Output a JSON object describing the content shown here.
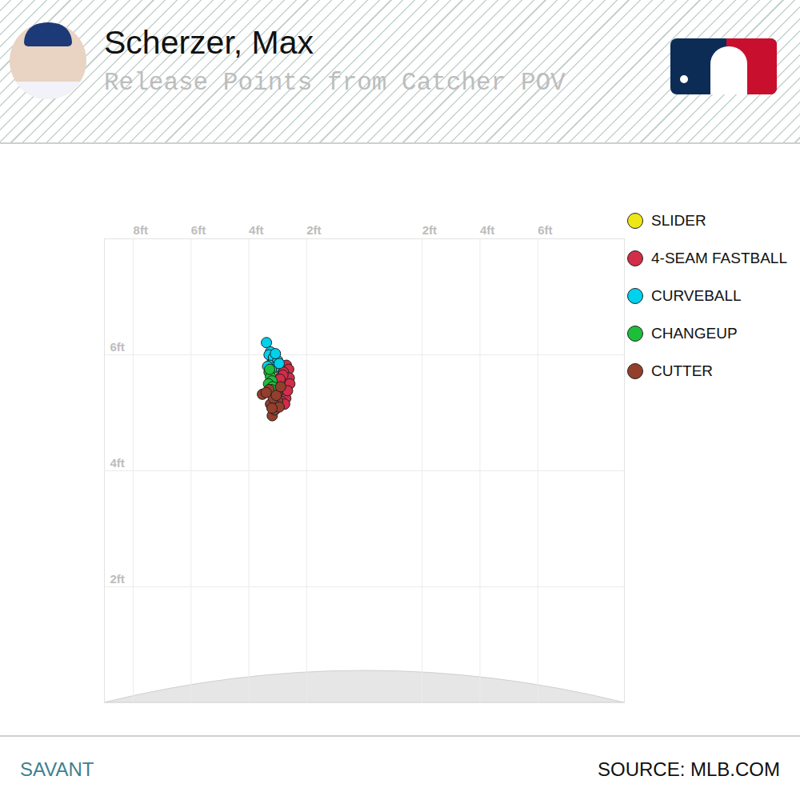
{
  "chart_data": {
    "type": "scatter",
    "title": "Scherzer, Max",
    "subtitle": "Release Points from Catcher POV",
    "footer_left": "SAVANT",
    "footer_right": "SOURCE: MLB.COM",
    "xlim": [
      -9,
      9
    ],
    "xticks": [
      {
        "value": -8,
        "label": "8ft"
      },
      {
        "value": -6,
        "label": "6ft"
      },
      {
        "value": -4,
        "label": "4ft"
      },
      {
        "value": -2,
        "label": "2ft"
      },
      {
        "value": 2,
        "label": "2ft"
      },
      {
        "value": 4,
        "label": "4ft"
      },
      {
        "value": 6,
        "label": "6ft"
      }
    ],
    "ylim": [
      0,
      8
    ],
    "yticks": [
      {
        "value": 2,
        "label": "2ft"
      },
      {
        "value": 4,
        "label": "4ft"
      },
      {
        "value": 6,
        "label": "6ft"
      }
    ],
    "grid": true,
    "legend": "right",
    "series": [
      {
        "name": "SLIDER",
        "color": "#eee716",
        "marker": "circle",
        "x": [
          -3.1,
          -3.0,
          -2.95,
          -3.15,
          -3.05,
          -2.9,
          -3.2,
          -3.02,
          -2.98,
          -3.12
        ],
        "y": [
          5.5,
          5.45,
          5.6,
          5.4,
          5.35,
          5.3,
          5.55,
          5.62,
          5.25,
          5.28
        ]
      },
      {
        "name": "4-SEAM FASTBALL",
        "color": "#d22d49",
        "marker": "circle",
        "x": [
          -2.7,
          -2.62,
          -2.8,
          -2.9,
          -2.75,
          -2.6,
          -2.85,
          -2.95,
          -2.68,
          -2.78,
          -3.0,
          -2.72,
          -2.58,
          -2.88,
          -2.82,
          -2.66,
          -2.92,
          -2.76
        ],
        "y": [
          5.82,
          5.75,
          5.7,
          5.62,
          5.55,
          5.6,
          5.48,
          5.4,
          5.45,
          5.35,
          5.3,
          5.25,
          5.5,
          5.2,
          5.65,
          5.38,
          5.58,
          5.15
        ]
      },
      {
        "name": "CURVEBALL",
        "color": "#00d1ed",
        "marker": "circle",
        "x": [
          -3.39,
          -3.25,
          -3.18,
          -3.1,
          -3.3,
          -3.05,
          -3.2,
          -3.15,
          -3.0,
          -3.28,
          -3.12,
          -3.22,
          -2.95,
          -3.35,
          -3.08
        ],
        "y": [
          6.21,
          6.05,
          5.98,
          5.92,
          6.0,
          5.88,
          5.85,
          5.95,
          5.9,
          5.82,
          5.78,
          5.75,
          5.85,
          5.8,
          6.02
        ]
      },
      {
        "name": "CHANGEUP",
        "color": "#1dbe3a",
        "marker": "circle",
        "x": [
          -3.3,
          -3.25,
          -3.2,
          -3.32,
          -3.18,
          -3.28,
          -3.22
        ],
        "y": [
          5.7,
          5.62,
          5.55,
          5.5,
          5.45,
          5.75,
          5.4
        ]
      },
      {
        "name": "CUTTER",
        "color": "#933f2c",
        "marker": "circle",
        "x": [
          -3.53,
          -3.19,
          -3.1,
          -3.25,
          -3.0,
          -2.95,
          -3.15,
          -3.3,
          -3.05,
          -2.9,
          -3.4,
          -3.2
        ],
        "y": [
          5.32,
          4.95,
          5.05,
          5.15,
          5.2,
          5.1,
          5.25,
          5.4,
          5.3,
          5.45,
          5.35,
          5.08
        ]
      }
    ]
  }
}
